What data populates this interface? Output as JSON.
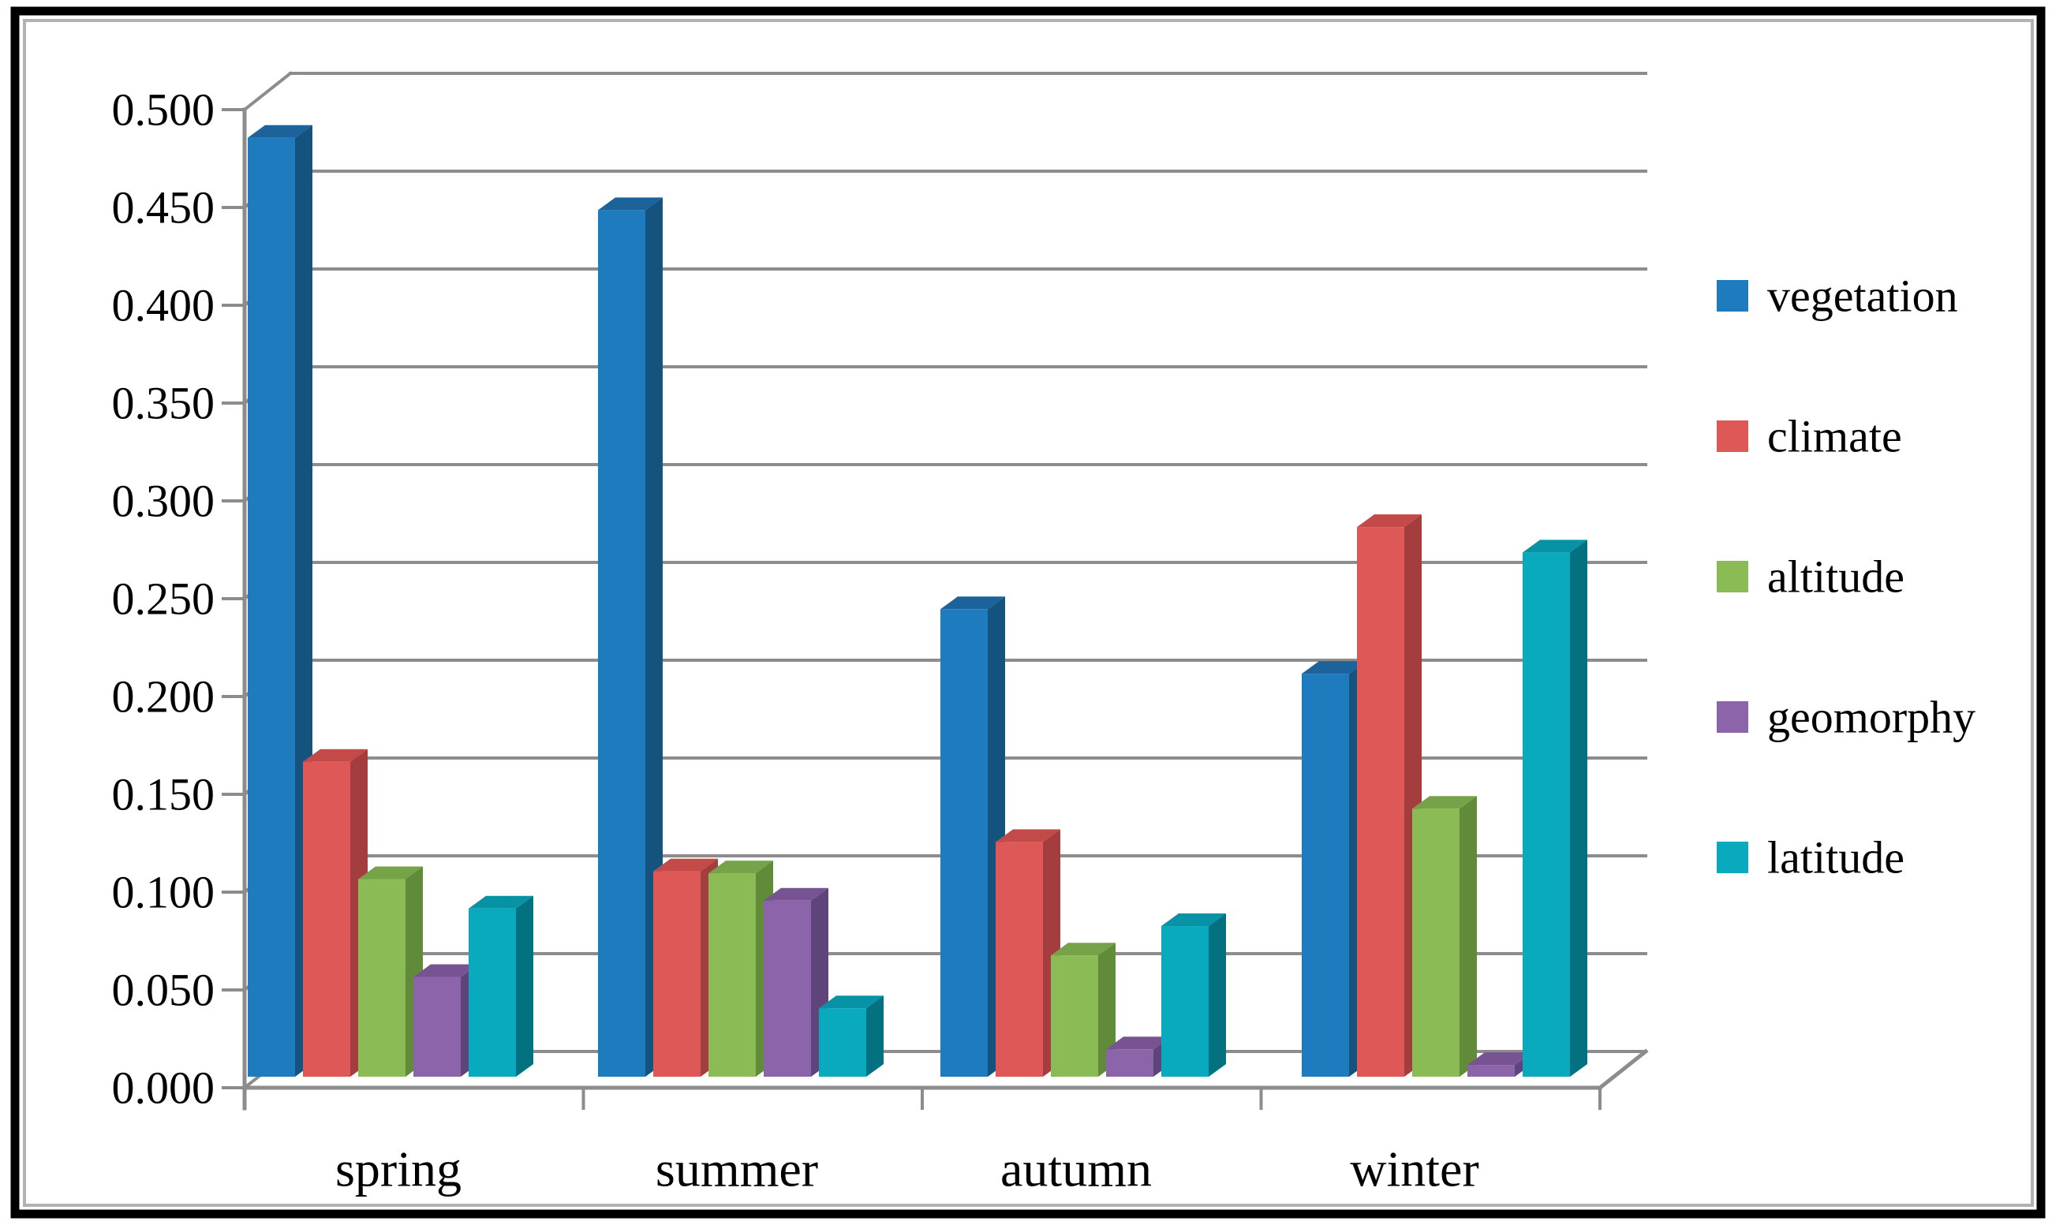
{
  "frame": {
    "background": "#ffffff",
    "outer_border_color": "#000000",
    "inner_line_color": "#b2b2b2"
  },
  "chart_data": {
    "type": "bar",
    "style": "3d-column",
    "title": "",
    "xlabel": "",
    "ylabel": "",
    "categories": [
      "spring",
      "summer",
      "autumn",
      "winter"
    ],
    "series": [
      {
        "name": "vegetation",
        "color": "#1e7cbe",
        "side_color": "#15537f",
        "top_color": "#1c639b",
        "values": [
          0.48,
          0.443,
          0.239,
          0.206
        ]
      },
      {
        "name": "climate",
        "color": "#de5858",
        "side_color": "#a43e3e",
        "top_color": "#c44a4a",
        "values": [
          0.161,
          0.105,
          0.12,
          0.281
        ]
      },
      {
        "name": "altitude",
        "color": "#8abb55",
        "side_color": "#618b39",
        "top_color": "#76a348",
        "values": [
          0.101,
          0.104,
          0.062,
          0.137
        ]
      },
      {
        "name": "geomorphy",
        "color": "#8b64a9",
        "side_color": "#5f447b",
        "top_color": "#775394",
        "values": [
          0.051,
          0.09,
          0.014,
          0.006
        ]
      },
      {
        "name": "latitude",
        "color": "#09a9be",
        "side_color": "#03717f",
        "top_color": "#0793a5",
        "values": [
          0.086,
          0.035,
          0.077,
          0.268
        ]
      }
    ],
    "y_axis": {
      "min": 0.0,
      "max": 0.5,
      "step": 0.05,
      "tick_labels": [
        "0.000",
        "0.050",
        "0.100",
        "0.150",
        "0.200",
        "0.250",
        "0.300",
        "0.350",
        "0.400",
        "0.450",
        "0.500"
      ]
    },
    "grid": true,
    "gridline_color": "#8c8c8c",
    "legend_position": "right",
    "legend": [
      "vegetation",
      "climate",
      "altitude",
      "geomorphy",
      "latitude"
    ]
  }
}
